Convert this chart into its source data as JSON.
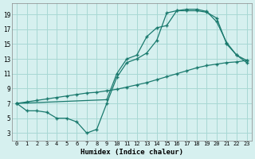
{
  "xlabel": "Humidex (Indice chaleur)",
  "bg_color": "#d6f0ef",
  "grid_color": "#a8d8d4",
  "line_color": "#1a7a6e",
  "xlim": [
    -0.5,
    23.5
  ],
  "ylim": [
    2,
    20.5
  ],
  "xticks": [
    0,
    1,
    2,
    3,
    4,
    5,
    6,
    7,
    8,
    9,
    10,
    11,
    12,
    13,
    14,
    15,
    16,
    17,
    18,
    19,
    20,
    21,
    22,
    23
  ],
  "yticks": [
    3,
    5,
    7,
    9,
    11,
    13,
    15,
    17,
    19
  ],
  "line1_x": [
    0,
    1,
    2,
    3,
    4,
    5,
    6,
    7,
    8,
    9,
    10,
    11,
    12,
    13,
    14,
    15,
    16,
    17,
    18,
    19,
    20,
    21,
    22,
    23
  ],
  "line1_y": [
    7,
    6,
    6,
    5.8,
    5,
    5,
    4.5,
    3,
    3.5,
    7,
    10.5,
    12.5,
    13,
    13.8,
    15.5,
    19.2,
    19.5,
    19.5,
    19.5,
    19.3,
    18.5,
    15,
    13.5,
    12.5
  ],
  "line2_x": [
    0,
    9,
    10,
    11,
    12,
    13,
    14,
    15,
    16,
    17,
    18,
    19,
    20,
    21,
    22,
    23
  ],
  "line2_y": [
    7,
    7.5,
    11,
    13,
    13.5,
    16,
    17.2,
    17.5,
    19.5,
    19.7,
    19.7,
    19.4,
    18,
    15.2,
    13.5,
    12.8
  ],
  "line3_x": [
    0,
    1,
    2,
    3,
    4,
    5,
    6,
    7,
    8,
    9,
    10,
    11,
    12,
    13,
    14,
    15,
    16,
    17,
    18,
    19,
    20,
    21,
    22,
    23
  ],
  "line3_y": [
    7,
    7.2,
    7.4,
    7.6,
    7.8,
    8.0,
    8.2,
    8.4,
    8.5,
    8.7,
    8.9,
    9.2,
    9.5,
    9.8,
    10.2,
    10.6,
    11.0,
    11.4,
    11.8,
    12.1,
    12.3,
    12.5,
    12.6,
    12.8
  ]
}
